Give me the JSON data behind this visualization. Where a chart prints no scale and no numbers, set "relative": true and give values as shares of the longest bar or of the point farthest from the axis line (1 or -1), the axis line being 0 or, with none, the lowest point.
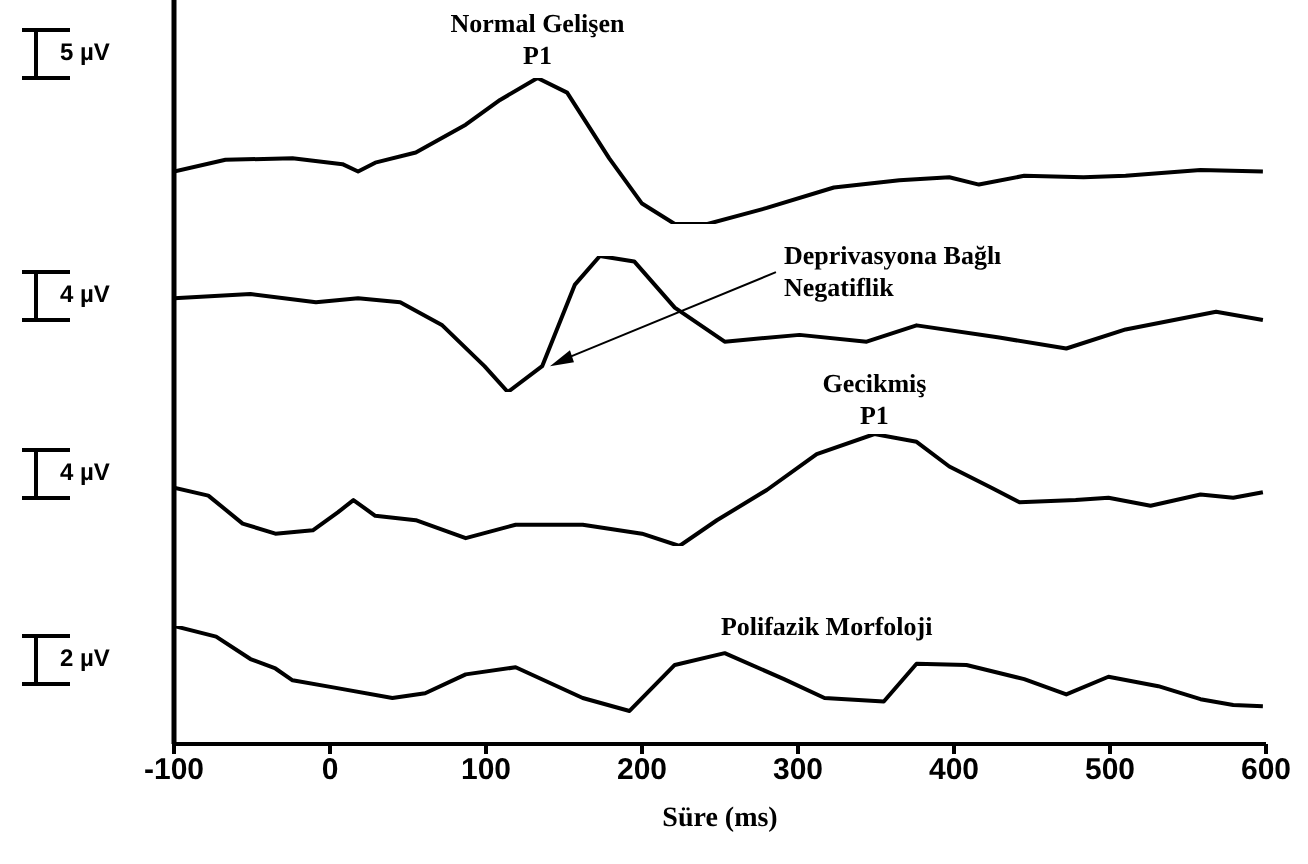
{
  "chart_data": [
    {
      "type": "line",
      "relative": true,
      "x": [
        -100,
        -67,
        -24,
        8,
        18,
        29,
        55,
        87,
        109,
        133,
        152,
        179,
        200,
        221,
        242,
        280,
        323,
        365,
        397,
        416,
        445,
        483,
        510,
        558,
        598
      ],
      "series": [
        {
          "color": "#000000",
          "values": [
            0.36,
            0.44,
            0.45,
            0.41,
            0.36,
            0.42,
            0.49,
            0.68,
            0.85,
            1,
            0.9,
            0.45,
            0.14,
            0,
            0,
            0.11,
            0.25,
            0.3,
            0.32,
            0.27,
            0.33,
            0.32,
            0.33,
            0.37,
            0.36
          ]
        }
      ],
      "xlim": [
        -100,
        600
      ],
      "tick_labels": false,
      "annotations": [
        "5 µV",
        {
          "text": "Normal Gelişen\nP1",
          "x": 133,
          "y": 1
        }
      ]
    },
    {
      "type": "line",
      "relative": true,
      "x": [
        -100,
        -51,
        -9,
        18,
        45,
        72,
        99,
        114,
        136,
        157,
        173,
        195,
        221,
        253,
        301,
        344,
        376,
        429,
        472,
        510,
        568,
        598
      ],
      "series": [
        {
          "color": "#000000",
          "values": [
            0.69,
            0.72,
            0.66,
            0.69,
            0.66,
            0.49,
            0.19,
            0,
            0.19,
            0.79,
            1,
            0.96,
            0.62,
            0.37,
            0.42,
            0.37,
            0.49,
            0.4,
            0.32,
            0.46,
            0.59,
            0.53
          ]
        }
      ],
      "xlim": [
        -100,
        600
      ],
      "tick_labels": false,
      "annotations": [
        "4 µV",
        {
          "text": "Deprivasyona Bağlı\nNegatiflik",
          "x": 141,
          "y": 0.19
        }
      ]
    },
    {
      "type": "line",
      "relative": true,
      "x": [
        -100,
        -78,
        -56,
        -35,
        -11,
        5,
        15,
        29,
        55,
        87,
        119,
        162,
        200,
        224,
        248,
        280,
        312,
        349,
        376,
        397,
        424,
        442,
        478,
        499,
        526,
        558,
        579,
        598
      ],
      "series": [
        {
          "color": "#000000",
          "values": [
            0.52,
            0.45,
            0.2,
            0.11,
            0.14,
            0.3,
            0.41,
            0.27,
            0.23,
            0.07,
            0.19,
            0.19,
            0.11,
            0,
            0.23,
            0.5,
            0.82,
            1,
            0.93,
            0.71,
            0.52,
            0.39,
            0.41,
            0.43,
            0.36,
            0.46,
            0.43,
            0.48
          ]
        }
      ],
      "xlim": [
        -100,
        600
      ],
      "tick_labels": false,
      "annotations": [
        "4 µV",
        {
          "text": "Gecikmiş\nP1",
          "x": 349,
          "y": 1
        }
      ]
    },
    {
      "type": "line",
      "relative": true,
      "x": [
        -100,
        -73,
        -51,
        -35,
        -24,
        2,
        40,
        61,
        87,
        119,
        162,
        192,
        221,
        253,
        291,
        317,
        355,
        376,
        408,
        445,
        472,
        499,
        531,
        558,
        579,
        598
      ],
      "series": [
        {
          "color": "#000000",
          "values": [
            1,
            0.91,
            0.72,
            0.64,
            0.54,
            0.48,
            0.39,
            0.43,
            0.59,
            0.65,
            0.39,
            0.28,
            0.67,
            0.77,
            0.55,
            0.39,
            0.36,
            0.68,
            0.67,
            0.55,
            0.42,
            0.57,
            0.49,
            0.38,
            0.33,
            0.32
          ]
        }
      ],
      "xlim": [
        -100,
        600
      ],
      "xticks": [
        -100,
        0,
        100,
        200,
        300,
        400,
        500,
        600
      ],
      "tick_labels": "x",
      "xlabel": "Süre (ms)",
      "annotations": [
        "2 µV",
        {
          "text": "Polifazik Morfoloji",
          "x": 253,
          "y": 0.77
        }
      ]
    }
  ]
}
